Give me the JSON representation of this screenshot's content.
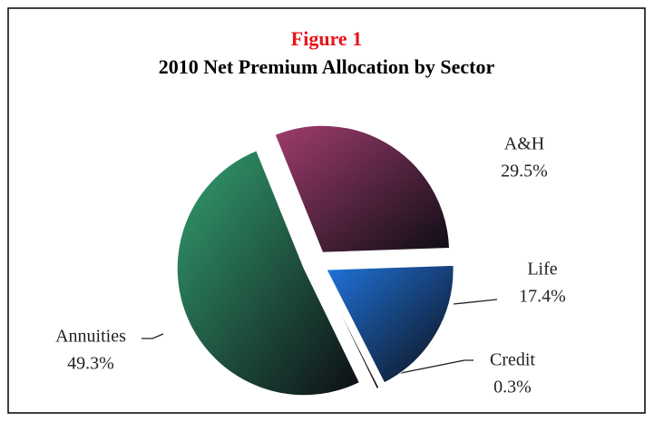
{
  "chart_data": {
    "type": "pie",
    "title": "Figure 1",
    "subtitle": "2010 Net Premium Allocation by Sector",
    "categories": [
      "A&H",
      "Life",
      "Credit",
      "Annuities"
    ],
    "values": [
      29.5,
      17.4,
      0.3,
      49.3
    ],
    "value_labels": [
      "29.5%",
      "17.4%",
      "0.3%",
      "49.3%"
    ],
    "colors": [
      "#a03c6e",
      "#1f74dc",
      "#3a3a3a",
      "#33a070"
    ]
  }
}
